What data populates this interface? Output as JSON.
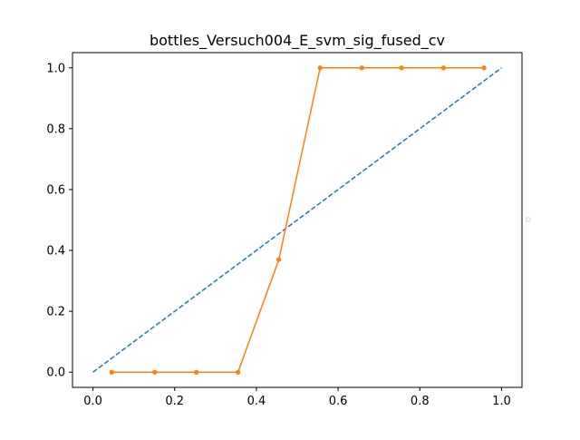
{
  "chart_data": {
    "type": "line",
    "title": "bottles_Versuch004_E_svm_sig_fused_cv",
    "xlabel": "",
    "ylabel": "",
    "xlim": [
      -0.05,
      1.05
    ],
    "ylim": [
      -0.05,
      1.05
    ],
    "xticks": [
      0.0,
      0.2,
      0.4,
      0.6,
      0.8,
      1.0
    ],
    "yticks": [
      0.0,
      0.2,
      0.4,
      0.6,
      0.8,
      1.0
    ],
    "xtick_labels": [
      "0.0",
      "0.2",
      "0.4",
      "0.6",
      "0.8",
      "1.0"
    ],
    "ytick_labels": [
      "0.0",
      "0.2",
      "0.4",
      "0.6",
      "0.8",
      "1.0"
    ],
    "grid": false,
    "legend": "center-right",
    "series": [
      {
        "style": "dashed",
        "color": "#1f77b4",
        "x": [
          0.0,
          1.0
        ],
        "y": [
          0.0,
          1.0
        ]
      },
      {
        "style": "solid-with-markers",
        "color": "#ff7f0e",
        "x": [
          0.046,
          0.151,
          0.253,
          0.355,
          0.455,
          0.556,
          0.658,
          0.755,
          0.858,
          0.957
        ],
        "y": [
          0.0,
          0.0,
          0.0,
          0.0,
          0.37,
          1.0,
          1.0,
          1.0,
          1.0,
          1.0
        ]
      }
    ]
  }
}
